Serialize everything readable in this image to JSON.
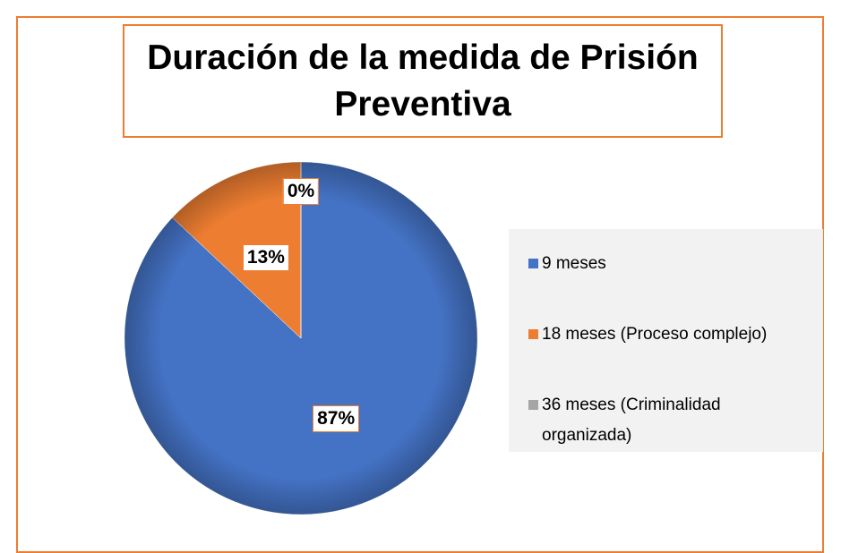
{
  "chart_data": {
    "type": "pie",
    "title": "Duración de la medida de Prisión Preventiva",
    "categories": [
      "9 meses",
      "18 meses (Proceso complejo)",
      "36 meses (Criminalidad organizada)"
    ],
    "values": [
      87,
      13,
      0
    ],
    "value_labels": [
      "87%",
      "13%",
      "0%"
    ],
    "colors": [
      "#4472c4",
      "#ed7d31",
      "#a5a5a5"
    ],
    "legend": "right"
  }
}
